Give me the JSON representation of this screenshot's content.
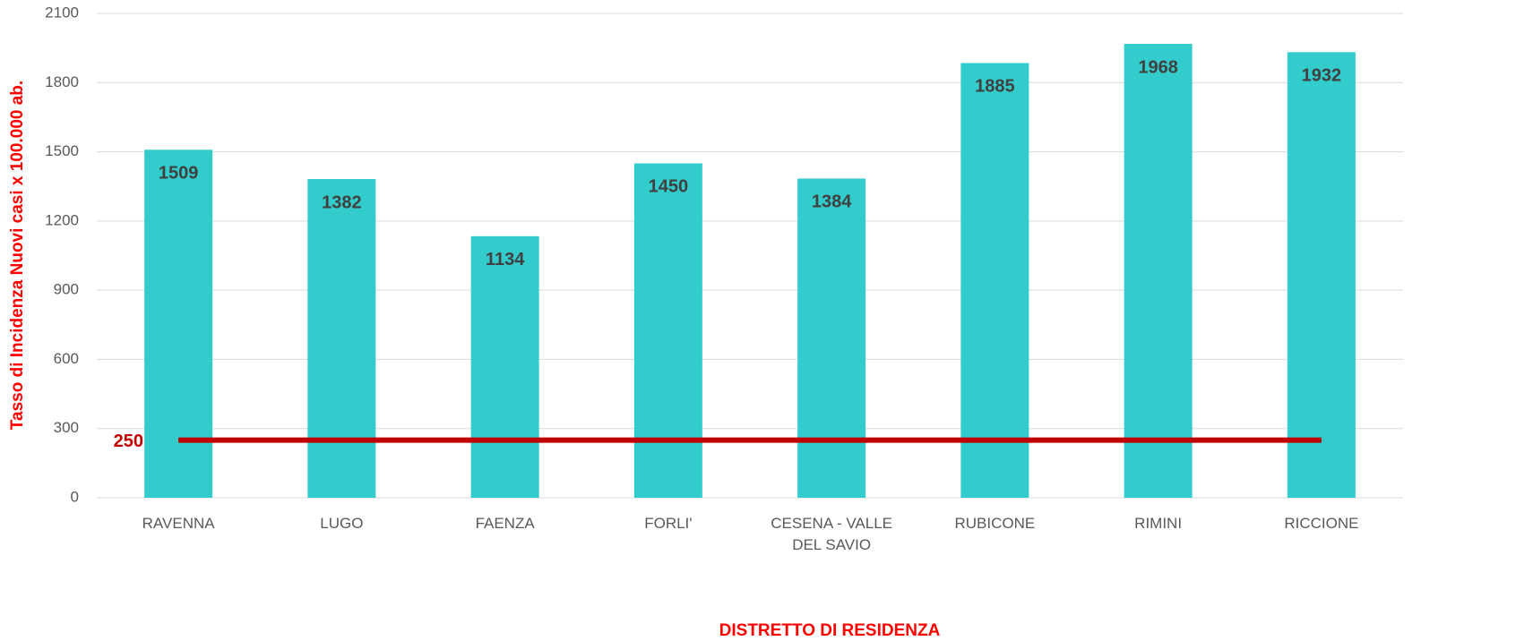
{
  "chart_data": {
    "type": "bar",
    "x_label": "DISTRETTO DI RESIDENZA",
    "y_label": "Tasso di Incidenza Nuovi casi x 100.000 ab.",
    "categories": [
      "RAVENNA",
      "LUGO",
      "FAENZA",
      "FORLI'",
      "CESENA - VALLE DEL SAVIO",
      "RUBICONE",
      "RIMINI",
      "RICCIONE"
    ],
    "values": [
      1509,
      1382,
      1134,
      1450,
      1384,
      1885,
      1968,
      1932
    ],
    "color": "#33cccc",
    "ylim": [
      0,
      2100
    ],
    "yticks": [
      0,
      300,
      600,
      900,
      1200,
      1500,
      1800,
      2100
    ],
    "grid": true,
    "threshold": {
      "value": 250,
      "color": "#c00000"
    }
  }
}
